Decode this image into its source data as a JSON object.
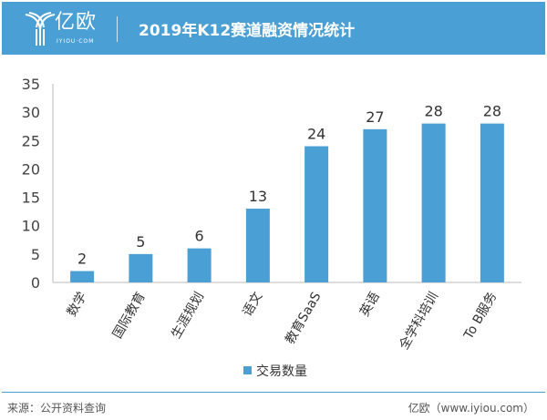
{
  "header": {
    "logo_text": "亿欧",
    "logo_sub": "IYIOU·COM",
    "title": "2019年K12赛道融资情况统计"
  },
  "footer": {
    "source": "来源：公开资料查询",
    "credit": "亿欧（www.iyiou.com）"
  },
  "colors": {
    "bar": "#4a9fd5",
    "header": "#4a9fd5"
  },
  "chart_data": {
    "type": "bar",
    "categories": [
      "数学",
      "国际教育",
      "生涯规划",
      "语文",
      "教育SaaS",
      "英语",
      "全学科培训",
      "To B服务"
    ],
    "series": [
      {
        "name": "交易数量",
        "values": [
          2,
          5,
          6,
          13,
          24,
          27,
          28,
          28
        ]
      }
    ],
    "ylim": [
      0,
      35
    ],
    "yticks": [
      0,
      5,
      10,
      15,
      20,
      25,
      30,
      35
    ],
    "grid": false,
    "legend": "bottom"
  }
}
